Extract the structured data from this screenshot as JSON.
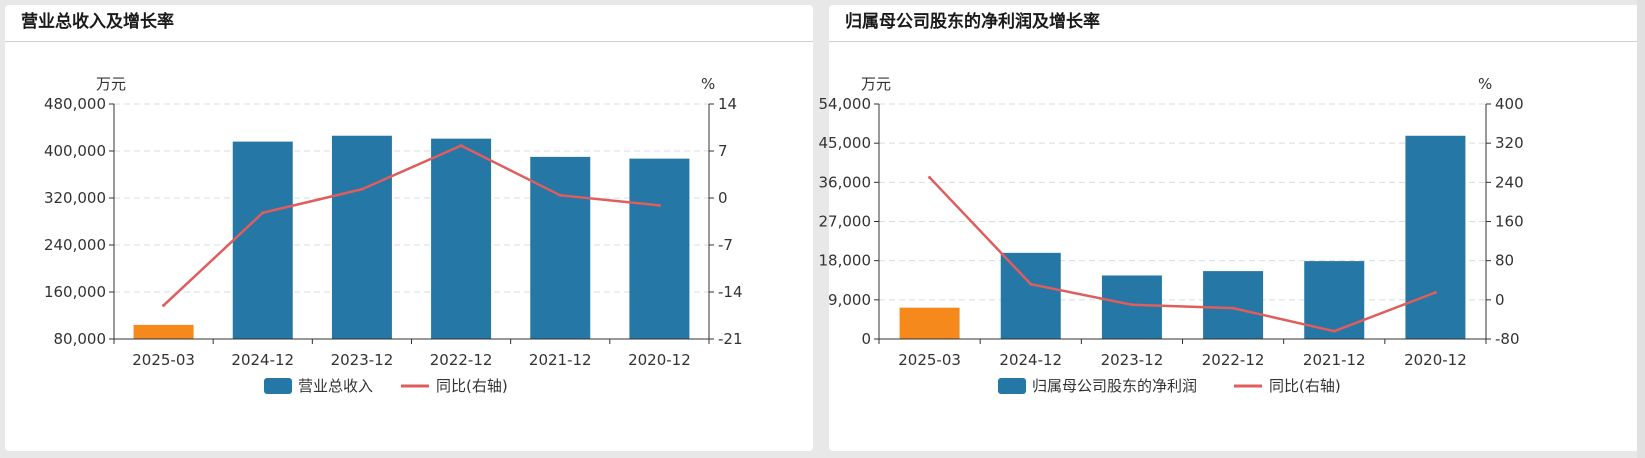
{
  "chart_data": [
    {
      "type": "bar",
      "title": "营业总收入及增长率",
      "y_unit": "万元",
      "y2_unit": "%",
      "categories": [
        "2025-03",
        "2024-12",
        "2023-12",
        "2022-12",
        "2021-12",
        "2020-12"
      ],
      "ylim": [
        80000,
        480000
      ],
      "yticks": [
        "80,000",
        "160,000",
        "240,000",
        "320,000",
        "400,000",
        "480,000"
      ],
      "y2lim": [
        -21,
        14
      ],
      "y2ticks": [
        "-21",
        "-14",
        "-7",
        "0",
        "7",
        "14"
      ],
      "series": [
        {
          "name": "营业总收入",
          "type": "bar",
          "values": [
            104000,
            416000,
            426000,
            421000,
            390000,
            387000
          ]
        },
        {
          "name": "同比(右轴)",
          "type": "line",
          "axis": "right",
          "values": [
            -16.0,
            -2.2,
            1.3,
            7.8,
            0.4,
            -1.1
          ]
        }
      ],
      "colors": {
        "bar": "#2577a5",
        "bar_highlight": "#f5891c",
        "line": "#e05d5d",
        "grid": "#d8dde3",
        "axis": "#333333"
      },
      "legend": "bottom-center",
      "grid": true
    },
    {
      "type": "bar",
      "title": "归属母公司股东的净利润及增长率",
      "y_unit": "万元",
      "y2_unit": "%",
      "categories": [
        "2025-03",
        "2024-12",
        "2023-12",
        "2022-12",
        "2021-12",
        "2020-12"
      ],
      "ylim": [
        0,
        54000
      ],
      "yticks": [
        "0",
        "9,000",
        "18,000",
        "27,000",
        "36,000",
        "45,000",
        "54,000"
      ],
      "y2lim": [
        -80,
        400
      ],
      "y2ticks": [
        "-80",
        "0",
        "80",
        "160",
        "240",
        "320",
        "400"
      ],
      "series": [
        {
          "name": "归属母公司股东的净利润",
          "type": "bar",
          "values": [
            7200,
            19800,
            14600,
            15600,
            17900,
            46700
          ]
        },
        {
          "name": "同比(右轴)",
          "type": "line",
          "axis": "right",
          "values": [
            250,
            32,
            -10,
            -17,
            -64,
            15
          ]
        }
      ],
      "colors": {
        "bar": "#2577a5",
        "bar_highlight": "#f5891c",
        "line": "#e05d5d",
        "grid": "#d8dde3",
        "axis": "#333333"
      },
      "legend": "bottom-center",
      "grid": true
    }
  ]
}
